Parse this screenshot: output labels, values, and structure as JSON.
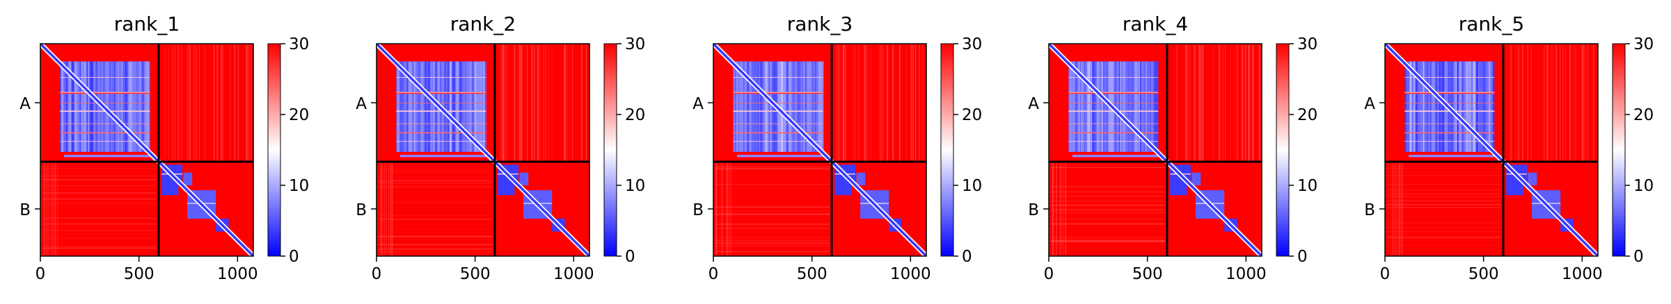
{
  "chart_data": {
    "type": "heatmap",
    "colormap": "bwr",
    "colors": {
      "low": "#0000ff",
      "mid": "#ffffff",
      "high": "#ff0000",
      "frame": "#000000"
    },
    "chain_labels": [
      "A",
      "B"
    ],
    "chain_boundary": 600,
    "length": 1080,
    "x_ticks": [
      0,
      500,
      1000
    ],
    "colorbar_ticks": [
      0,
      10,
      20,
      30
    ],
    "vmin": 0,
    "vmax": 30,
    "panels": [
      {
        "title": "rank_1",
        "block_A_mean": 3.5,
        "block_B_mean": 3.5,
        "inter_mean": 30,
        "stripe_strength": 0.55
      },
      {
        "title": "rank_2",
        "block_A_mean": 4.0,
        "block_B_mean": 3.5,
        "inter_mean": 30,
        "stripe_strength": 0.6
      },
      {
        "title": "rank_3",
        "block_A_mean": 4.5,
        "block_B_mean": 3.5,
        "inter_mean": 30,
        "stripe_strength": 0.7
      },
      {
        "title": "rank_4",
        "block_A_mean": 4.0,
        "block_B_mean": 3.5,
        "inter_mean": 30,
        "stripe_strength": 0.65
      },
      {
        "title": "rank_5",
        "block_A_mean": 3.5,
        "block_B_mean": 3.5,
        "inter_mean": 30,
        "stripe_strength": 0.55
      }
    ]
  }
}
